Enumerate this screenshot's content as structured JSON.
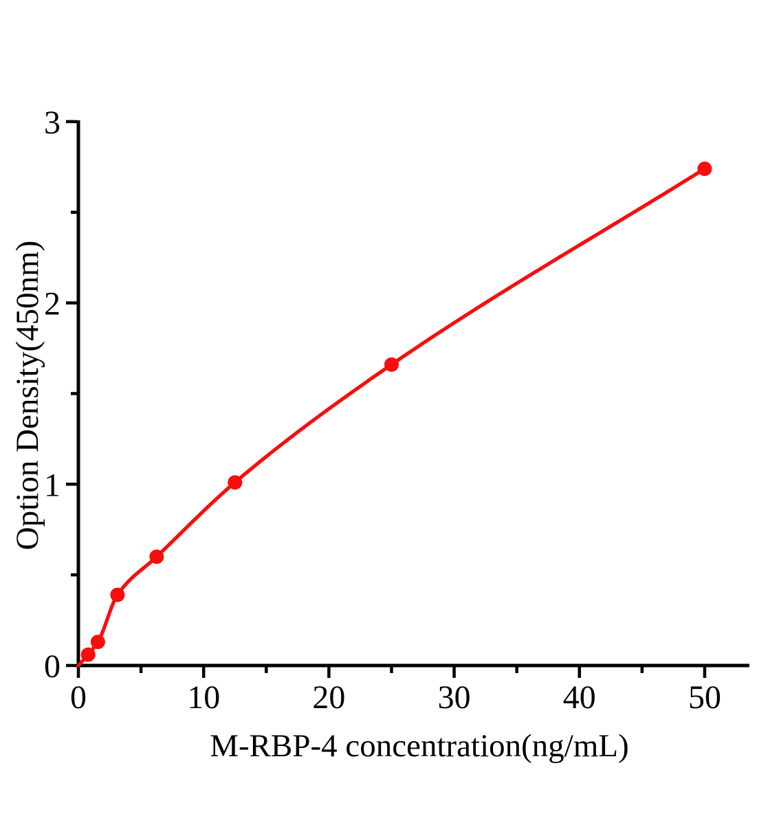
{
  "chart_data": {
    "type": "scatter",
    "title": "",
    "xlabel": "M-RBP-4 concentration(ng/mL)",
    "ylabel": "Option Density(450nm)",
    "x": [
      0.78,
      1.56,
      3.125,
      6.25,
      12.5,
      25,
      50
    ],
    "y": [
      0.06,
      0.13,
      0.39,
      0.6,
      1.01,
      1.66,
      2.74
    ],
    "fit_curve": "smooth monotone curve through origin and all points",
    "curve_start": [
      0,
      0
    ],
    "xlim": [
      0,
      53.6
    ],
    "ylim": [
      0,
      3
    ],
    "x_major_ticks": [
      0,
      10,
      20,
      30,
      40,
      50
    ],
    "x_minor_ticks": [
      5,
      15,
      25,
      35,
      45
    ],
    "y_major_ticks": [
      0,
      1,
      2,
      3
    ],
    "y_minor_ticks": [
      0.5,
      1.5,
      2.5
    ],
    "grid": false,
    "legend": "none",
    "marker": "filled-circle",
    "colors": {
      "series": "#f90d0d",
      "axis": "#000000",
      "tick_label": "#000000",
      "background": "#ffffff"
    }
  }
}
